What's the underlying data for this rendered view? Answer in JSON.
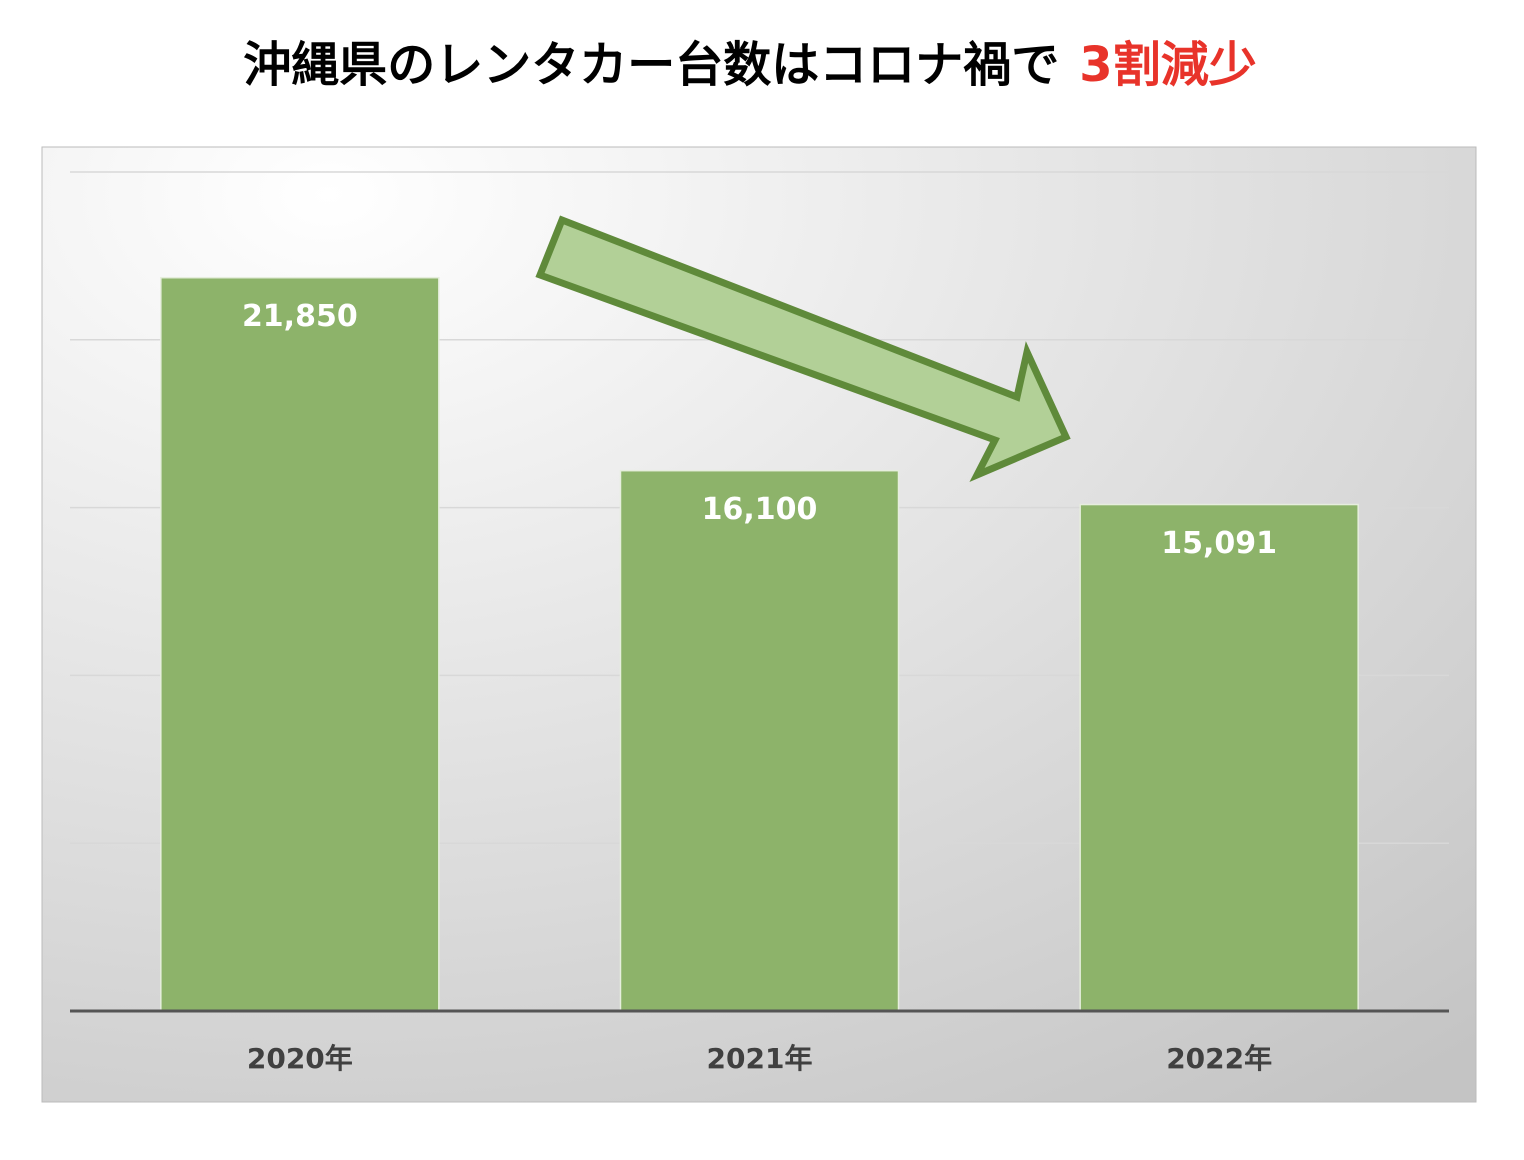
{
  "chart_data": {
    "type": "bar",
    "title": "沖縄県のレンタカー台数はコロナ禍で",
    "title_highlight": "3割減少",
    "title_highlight_color": "#e8332a",
    "categories": [
      "2020年",
      "2021年",
      "2022年"
    ],
    "values": [
      21850,
      16100,
      15091
    ],
    "value_labels": [
      "21,850",
      "16,100",
      "15,091"
    ],
    "color": "#8db36a",
    "ylim": [
      0,
      25000
    ],
    "yticks": [
      0,
      5000,
      10000,
      15000,
      20000,
      25000
    ],
    "grid": true
  }
}
